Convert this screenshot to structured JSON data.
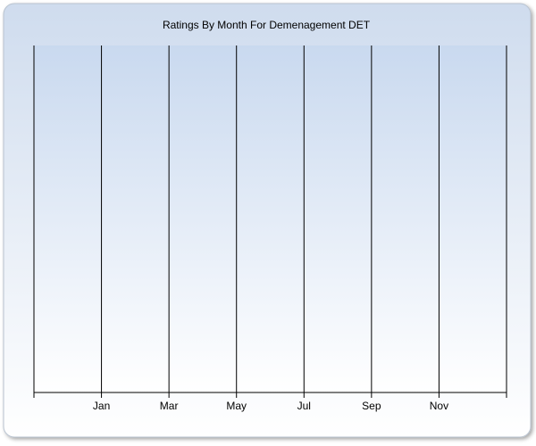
{
  "chart_data": {
    "type": "line",
    "title": "Ratings By Month For Demenagement DET",
    "categories": [
      null,
      null,
      "Jan",
      null,
      "Mar",
      null,
      "May",
      null,
      "Jul",
      null,
      "Sep",
      null,
      "Nov",
      null,
      null
    ],
    "series": [],
    "grid": true
  }
}
